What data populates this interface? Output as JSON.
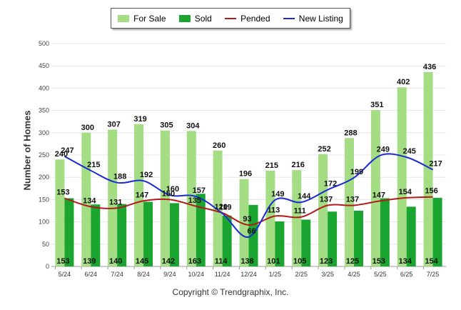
{
  "legend": {
    "items": [
      {
        "label": "For Sale",
        "color": "#a4dd84",
        "kind": "box"
      },
      {
        "label": "Sold",
        "color": "#1aa530",
        "kind": "box"
      },
      {
        "label": "Pended",
        "color": "#b31b1b",
        "kind": "line"
      },
      {
        "label": "New Listing",
        "color": "#1a2bd6",
        "kind": "line"
      }
    ]
  },
  "footer": {
    "copyright": "Copyright © Trendgraphix, Inc."
  },
  "chart_data": {
    "type": "bar",
    "ylabel": "Number of Homes",
    "ylim": [
      0,
      500
    ],
    "yticks": [
      0,
      50,
      100,
      150,
      200,
      250,
      300,
      350,
      400,
      450,
      500
    ],
    "grid": true,
    "legend_position": "top",
    "categories": [
      "5/24",
      "6/24",
      "7/24",
      "8/24",
      "9/24",
      "10/24",
      "11/24",
      "12/24",
      "1/25",
      "2/25",
      "3/25",
      "4/25",
      "5/25",
      "6/25",
      "7/25"
    ],
    "series": [
      {
        "name": "For Sale",
        "type": "bar",
        "color": "#a4dd84",
        "values": [
          240,
          300,
          307,
          319,
          305,
          304,
          260,
          196,
          215,
          216,
          252,
          288,
          351,
          402,
          436
        ]
      },
      {
        "name": "Sold",
        "type": "bar",
        "color": "#1aa530",
        "values": [
          153,
          139,
          140,
          145,
          142,
          163,
          114,
          138,
          101,
          105,
          123,
          125,
          153,
          134,
          154
        ]
      },
      {
        "name": "Pended",
        "type": "line",
        "color": "#b31b1b",
        "values": [
          153,
          134,
          131,
          147,
          150,
          135,
          120,
          93,
          113,
          111,
          137,
          137,
          147,
          154,
          156
        ]
      },
      {
        "name": "New Listing",
        "type": "line",
        "color": "#1a2bd6",
        "values": [
          247,
          215,
          188,
          192,
          160,
          157,
          119,
          66,
          149,
          144,
          172,
          199,
          249,
          245,
          217
        ]
      }
    ]
  }
}
